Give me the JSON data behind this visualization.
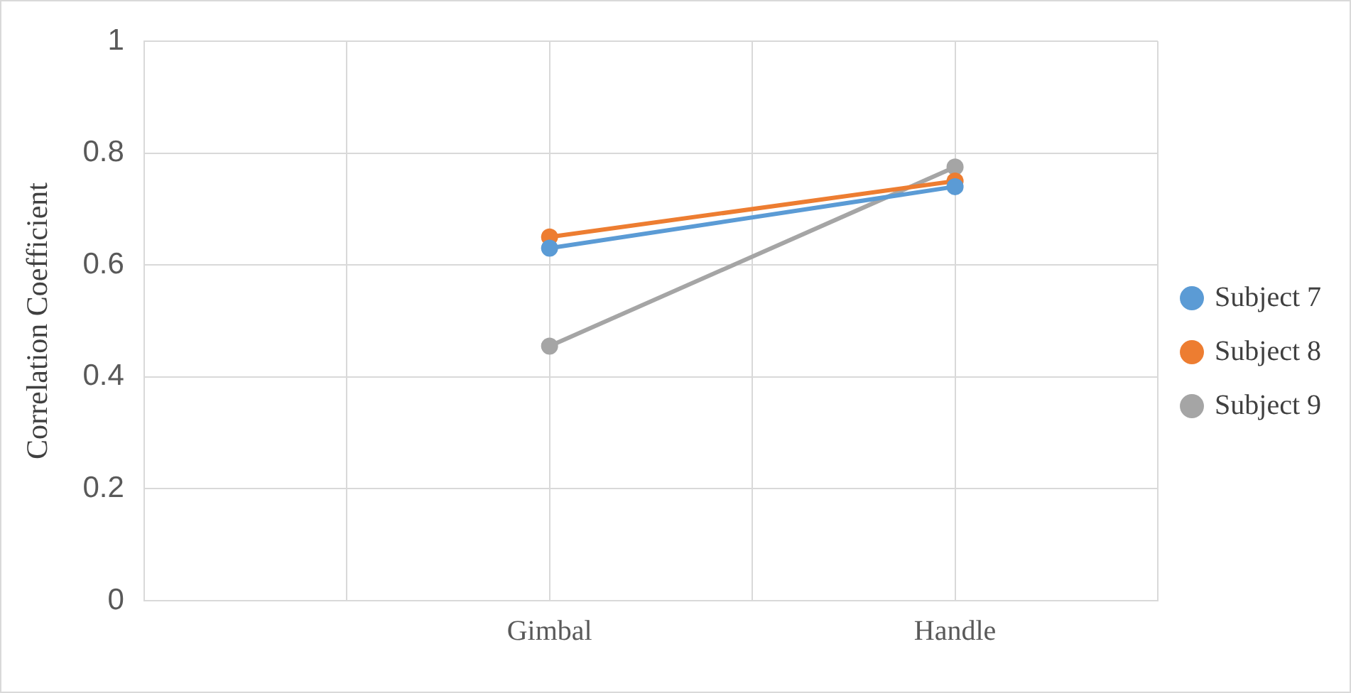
{
  "chart_data": {
    "type": "line",
    "ylabel": "Correlation Coefficient",
    "categories": [
      null,
      null,
      "Gimbal",
      null,
      "Handle",
      null
    ],
    "series": [
      {
        "name": "Subject 7",
        "color": "#5b9bd5",
        "values": [
          null,
          null,
          0.63,
          null,
          0.74,
          null
        ]
      },
      {
        "name": "Subject 8",
        "color": "#ed7d31",
        "values": [
          null,
          null,
          0.65,
          null,
          0.75,
          null
        ]
      },
      {
        "name": "Subject 9",
        "color": "#a5a5a5",
        "values": [
          null,
          null,
          0.455,
          null,
          0.775,
          null
        ]
      }
    ],
    "ylim": [
      0,
      1
    ],
    "yticks": [
      0,
      0.2,
      0.4,
      0.6,
      0.8,
      1
    ],
    "grid": true,
    "legend": "right",
    "marker": "circle",
    "line_style": "solid"
  }
}
